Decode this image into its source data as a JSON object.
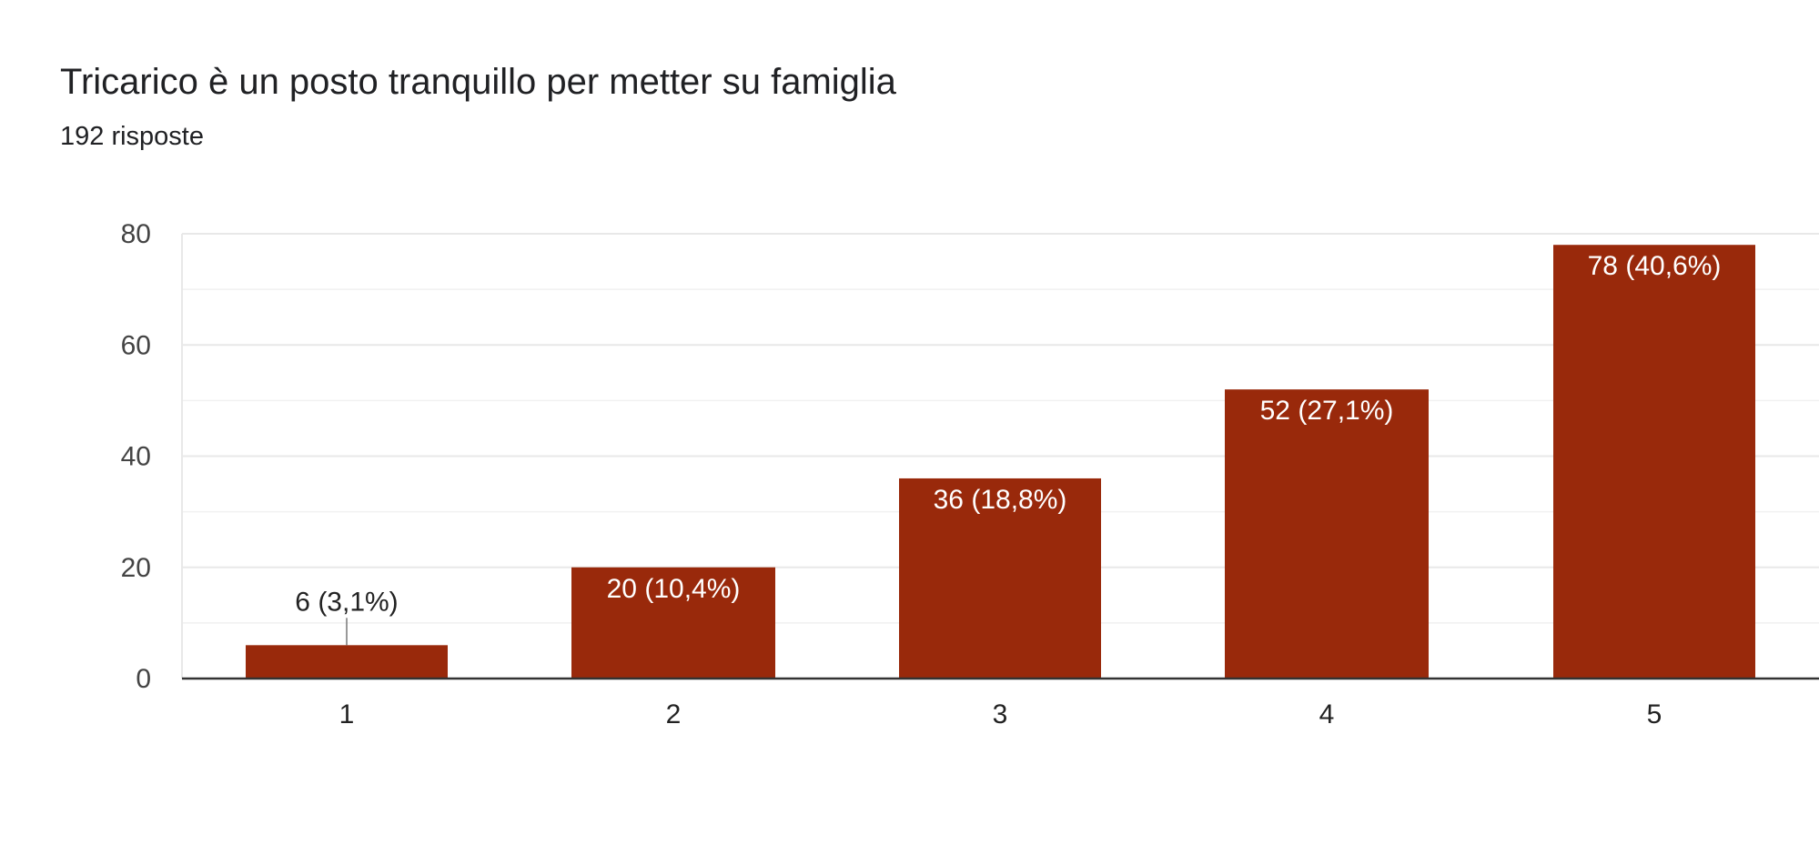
{
  "header": {
    "title": "Tricarico è un posto tranquillo per metter su famiglia",
    "subtitle": "192 risposte"
  },
  "colors": {
    "bar": "#99290b",
    "grid": "#e8e8e8",
    "axis": "#333333",
    "label_inside": "#ffffff",
    "label_outside": "#222222"
  },
  "chart_data": {
    "type": "bar",
    "title": "Tricarico è un posto tranquillo per metter su famiglia",
    "subtitle": "192 risposte",
    "categories": [
      "1",
      "2",
      "3",
      "4",
      "5"
    ],
    "values": [
      6,
      20,
      36,
      52,
      78
    ],
    "data_labels": [
      "6 (3,1%)",
      "20 (10,4%)",
      "36 (18,8%)",
      "52 (27,1%)",
      "78 (40,6%)"
    ],
    "ylim": [
      0,
      80
    ],
    "yticks": [
      0,
      20,
      40,
      60,
      80
    ],
    "grid": true,
    "legend": "none"
  }
}
